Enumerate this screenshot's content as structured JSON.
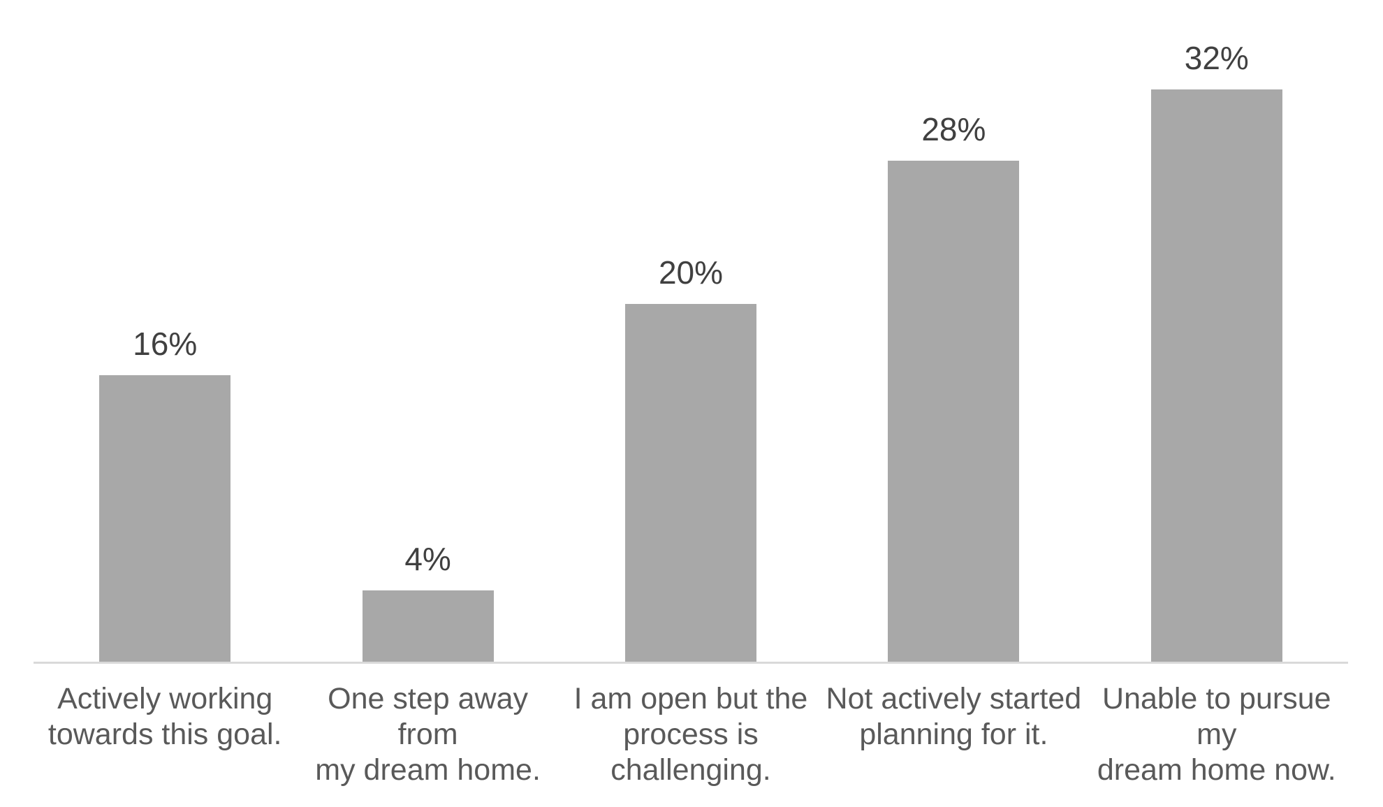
{
  "chart_data": {
    "type": "bar",
    "categories": [
      "Actively working towards this goal.",
      "One step away from my dream home.",
      "I am open but the process is challenging.",
      "Not actively started planning for it.",
      "Unable to pursue my dream home now."
    ],
    "category_label_lines": [
      [
        "Actively working",
        "towards this goal."
      ],
      [
        "One step away from",
        "my dream home."
      ],
      [
        "I am open but the",
        "process is",
        "challenging."
      ],
      [
        "Not actively started",
        "planning for it."
      ],
      [
        "Unable to pursue my",
        "dream home now."
      ]
    ],
    "values": [
      16,
      4,
      20,
      28,
      32
    ],
    "data_labels": [
      "16%",
      "4%",
      "20%",
      "28%",
      "32%"
    ],
    "title": "",
    "xlabel": "",
    "ylabel": "",
    "ylim": [
      0,
      37
    ],
    "grid": false,
    "legend": "none",
    "y_axis_visible": false,
    "colors": {
      "bar_fill": "#A8A8A8",
      "data_label": "#404040",
      "category_label": "#595959",
      "axis_line": "#D9D9D9",
      "background": "#FFFFFF"
    }
  }
}
